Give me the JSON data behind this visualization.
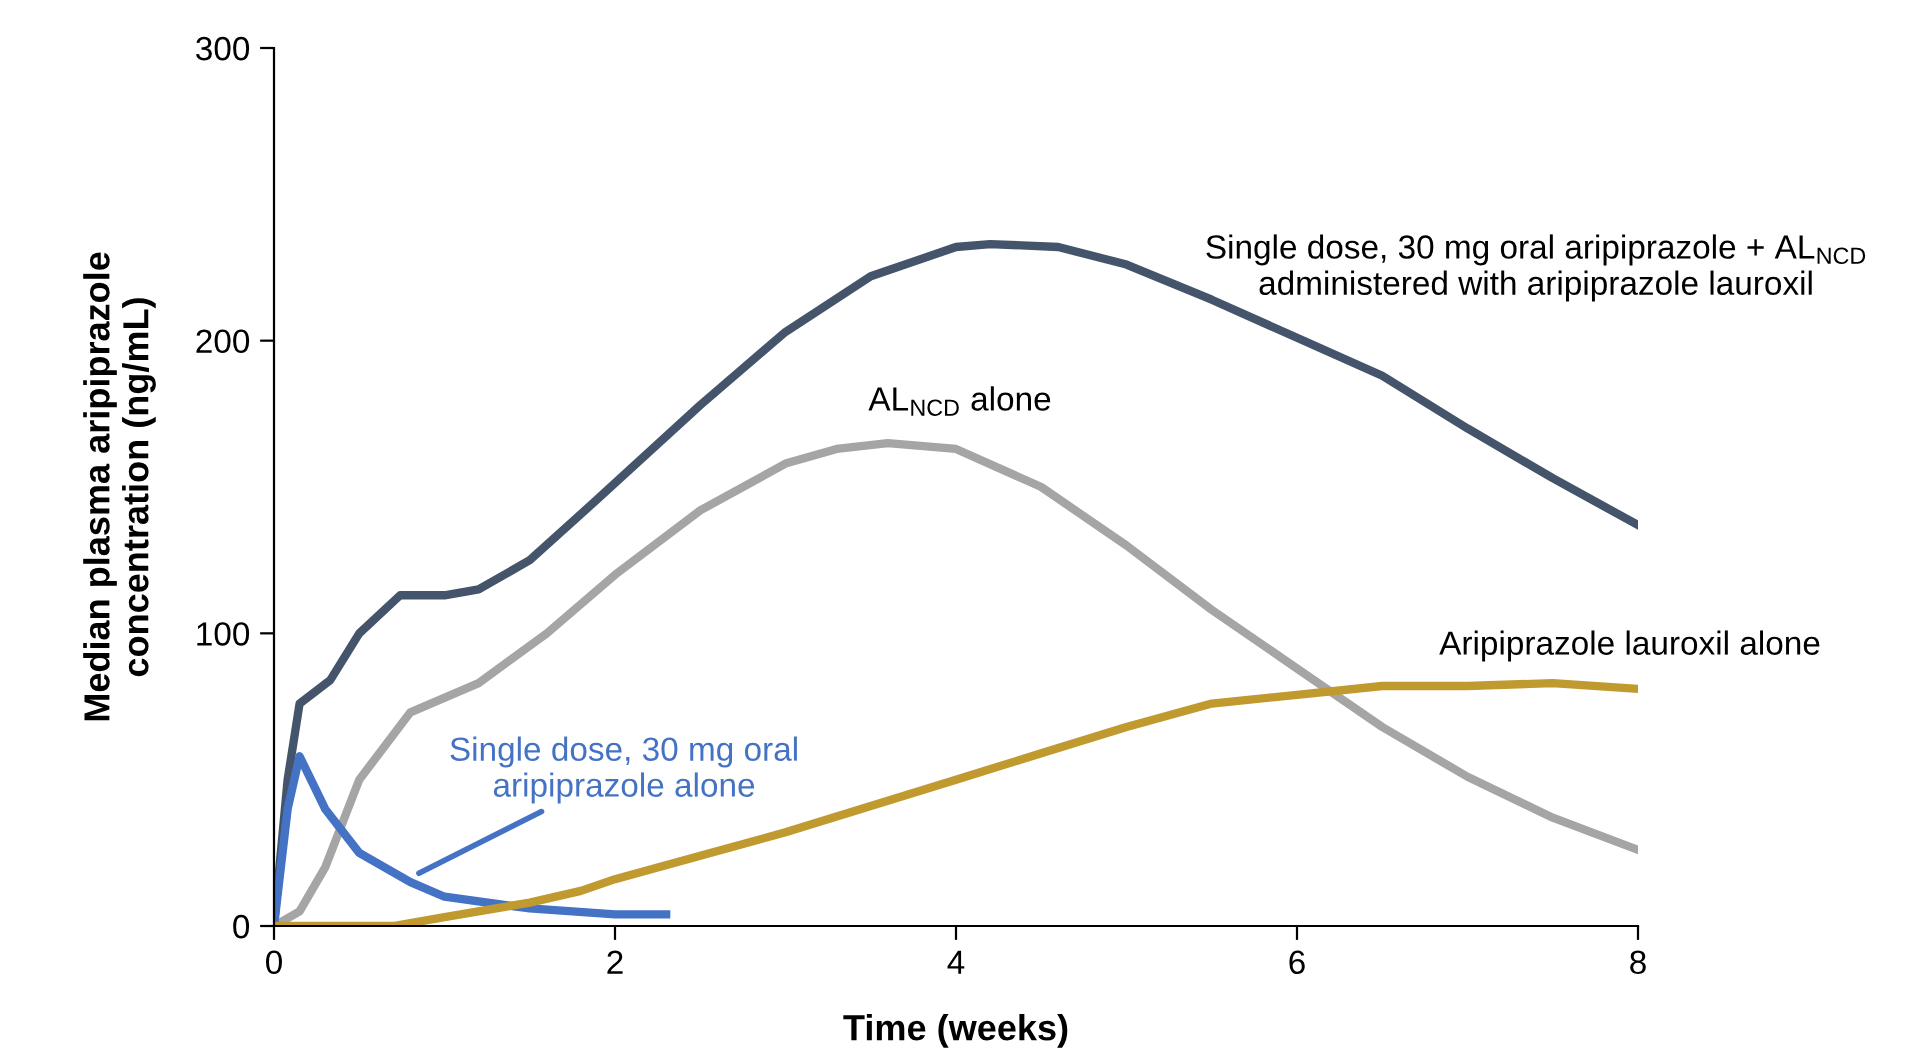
{
  "chart_data": {
    "type": "line",
    "xlabel": "Time (weeks)",
    "ylabel": "Median plasma aripiprazole\nconcentration (ng/mL)",
    "xlim": [
      0,
      8
    ],
    "xticks": [
      0,
      2,
      4,
      6,
      8
    ],
    "ylim": [
      0,
      300
    ],
    "yticks": [
      0,
      100,
      200,
      300
    ],
    "grid": false,
    "legend": false,
    "marker": "none",
    "line_style": "solid",
    "series": [
      {
        "name": "Single dose, 30 mg oral aripiprazole + AL$_{NCD}$\nadministered with aripiprazole lauroxil",
        "color": "#44546a",
        "x": [
          0,
          0.08,
          0.15,
          0.33,
          0.5,
          0.74,
          1.0,
          1.2,
          1.5,
          1.9,
          2.5,
          3.0,
          3.5,
          4.0,
          4.2,
          4.6,
          5.0,
          5.5,
          6.0,
          6.5,
          7.0,
          7.5,
          8.0
        ],
        "values": [
          0,
          50,
          76,
          84,
          100,
          113,
          113,
          115,
          125,
          146,
          178,
          203,
          222,
          232,
          233,
          232,
          226,
          214,
          201,
          188,
          170,
          153,
          137
        ]
      },
      {
        "name": "AL$_{NCD}$ alone",
        "color": "#a5a5a5",
        "x": [
          0,
          0.15,
          0.3,
          0.5,
          0.8,
          1.2,
          1.6,
          2.0,
          2.5,
          3.0,
          3.3,
          3.6,
          4.0,
          4.5,
          5.0,
          5.5,
          6.0,
          6.5,
          7.0,
          7.5,
          8.0
        ],
        "values": [
          0,
          5,
          20,
          50,
          73,
          83,
          100,
          120,
          142,
          158,
          163,
          165,
          163,
          150,
          130,
          108,
          88,
          68,
          51,
          37,
          26
        ]
      },
      {
        "name": "Single dose, 30 mg oral\naripiprazole alone",
        "color": "#4472c4",
        "x": [
          0,
          0.08,
          0.15,
          0.3,
          0.5,
          0.8,
          1.0,
          1.5,
          2.0,
          2.3
        ],
        "values": [
          0,
          40,
          58,
          40,
          25,
          15,
          10,
          6,
          4,
          4
        ]
      },
      {
        "name": "Aripiprazole lauroxil alone",
        "color": "#c09a2f",
        "x": [
          0,
          0.7,
          1.0,
          1.5,
          1.8,
          2.0,
          2.5,
          3.0,
          3.5,
          4.0,
          4.5,
          5.0,
          5.5,
          6.0,
          6.5,
          7.0,
          7.5,
          8.0
        ],
        "values": [
          0,
          0,
          3,
          8,
          12,
          16,
          24,
          32,
          41,
          50,
          59,
          68,
          76,
          79,
          82,
          82,
          83,
          81
        ]
      }
    ]
  }
}
